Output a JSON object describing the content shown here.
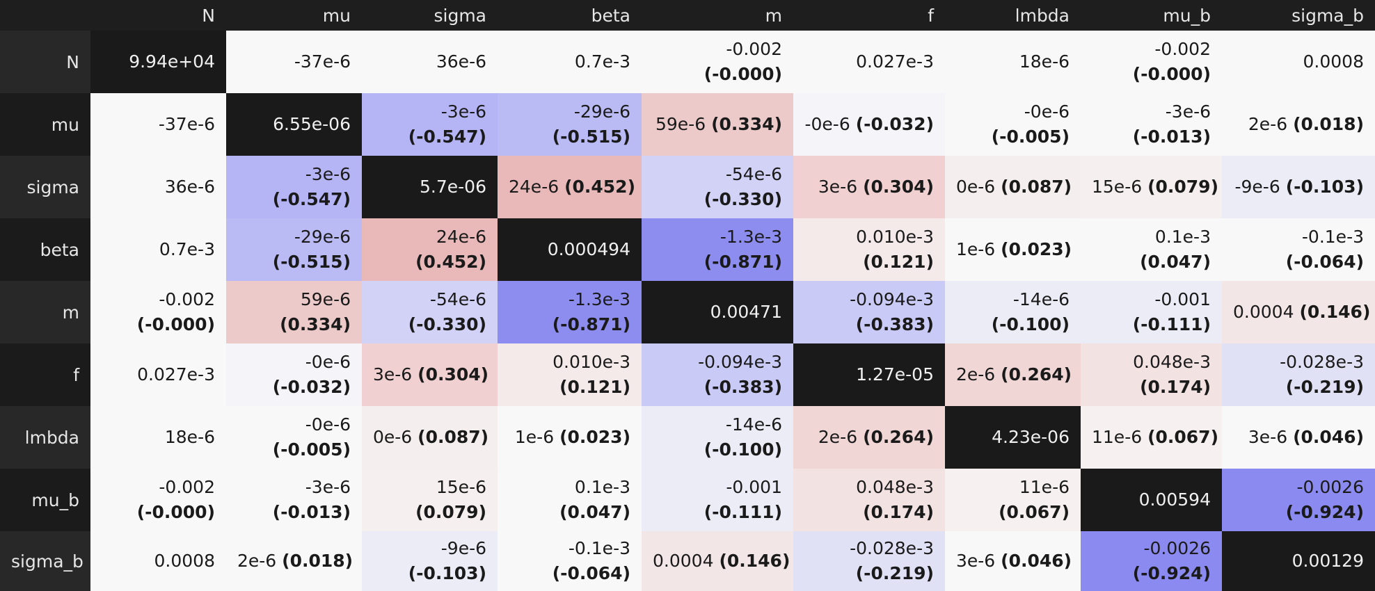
{
  "columns": [
    "N",
    "mu",
    "sigma",
    "beta",
    "m",
    "f",
    "lmbda",
    "mu_b",
    "sigma_b"
  ],
  "rows": [
    {
      "name": "N",
      "cells": [
        {
          "v": "9.94e+04",
          "bg": "#1a1a1a",
          "fg": "#f0f0f0"
        },
        {
          "v": "-37e-6",
          "bg": "#f8f8f8"
        },
        {
          "v": "36e-6",
          "bg": "#f8f8f8"
        },
        {
          "v": "0.7e-3",
          "bg": "#f8f8f8"
        },
        {
          "v": "-0.002",
          "c": "(-0.000)",
          "nl": true,
          "bg": "#f8f8f8"
        },
        {
          "v": "0.027e-3",
          "bg": "#f8f8f8"
        },
        {
          "v": "18e-6",
          "bg": "#f8f8f8"
        },
        {
          "v": "-0.002",
          "c": "(-0.000)",
          "nl": true,
          "bg": "#f8f8f8"
        },
        {
          "v": "0.0008",
          "bg": "#f8f8f8"
        }
      ]
    },
    {
      "name": "mu",
      "cells": [
        {
          "v": "-37e-6",
          "bg": "#f8f8f8"
        },
        {
          "v": "6.55e-06",
          "bg": "#1a1a1a",
          "fg": "#f0f0f0"
        },
        {
          "v": "-3e-6",
          "c": "(-0.547)",
          "nl": true,
          "bg": "#b5b5f6"
        },
        {
          "v": "-29e-6",
          "c": "(-0.515)",
          "nl": true,
          "bg": "#babaf5"
        },
        {
          "v": "59e-6",
          "c": "(0.334)",
          "nl": false,
          "bg": "#edcaca"
        },
        {
          "v": "-0e-6",
          "c": "(-0.032)",
          "nl": false,
          "bg": "#f5f5f9"
        },
        {
          "v": "-0e-6",
          "c": "(-0.005)",
          "nl": true,
          "bg": "#f8f8f8"
        },
        {
          "v": "-3e-6",
          "c": "(-0.013)",
          "nl": true,
          "bg": "#f8f8f8"
        },
        {
          "v": "2e-6",
          "c": "(0.018)",
          "nl": false,
          "bg": "#f8f8f8"
        }
      ]
    },
    {
      "name": "sigma",
      "cells": [
        {
          "v": "36e-6",
          "bg": "#f8f8f8"
        },
        {
          "v": "-3e-6",
          "c": "(-0.547)",
          "nl": true,
          "bg": "#b5b5f6"
        },
        {
          "v": "5.7e-06",
          "bg": "#1a1a1a",
          "fg": "#f0f0f0"
        },
        {
          "v": "24e-6",
          "c": "(0.452)",
          "nl": false,
          "bg": "#e9b9b9"
        },
        {
          "v": "-54e-6",
          "c": "(-0.330)",
          "nl": true,
          "bg": "#d2d2f6"
        },
        {
          "v": "3e-6",
          "c": "(0.304)",
          "nl": false,
          "bg": "#f0d0d0"
        },
        {
          "v": "0e-6",
          "c": "(0.087)",
          "nl": false,
          "bg": "#f5eeee"
        },
        {
          "v": "15e-6",
          "c": "(0.079)",
          "nl": false,
          "bg": "#f5efef"
        },
        {
          "v": "-9e-6",
          "c": "(-0.103)",
          "nl": false,
          "bg": "#ececf7"
        }
      ]
    },
    {
      "name": "beta",
      "cells": [
        {
          "v": "0.7e-3",
          "bg": "#f8f8f8"
        },
        {
          "v": "-29e-6",
          "c": "(-0.515)",
          "nl": true,
          "bg": "#babaf5"
        },
        {
          "v": "24e-6",
          "c": "(0.452)",
          "nl": true,
          "bg": "#e9b9b9"
        },
        {
          "v": "0.000494",
          "bg": "#1a1a1a",
          "fg": "#f0f0f0"
        },
        {
          "v": "-1.3e-3",
          "c": "(-0.871)",
          "nl": true,
          "bg": "#8d8df0"
        },
        {
          "v": "0.010e-3",
          "c": "(0.121)",
          "nl": true,
          "bg": "#f4eaea"
        },
        {
          "v": "1e-6",
          "c": "(0.023)",
          "nl": false,
          "bg": "#f8f8f8"
        },
        {
          "v": "0.1e-3",
          "c": "(0.047)",
          "nl": true,
          "bg": "#f8f8f8"
        },
        {
          "v": "-0.1e-3",
          "c": "(-0.064)",
          "nl": true,
          "bg": "#f8f8f8"
        }
      ]
    },
    {
      "name": "m",
      "cells": [
        {
          "v": "-0.002",
          "c": "(-0.000)",
          "nl": true,
          "bg": "#f8f8f8"
        },
        {
          "v": "59e-6",
          "c": "(0.334)",
          "nl": true,
          "bg": "#edcaca"
        },
        {
          "v": "-54e-6",
          "c": "(-0.330)",
          "nl": true,
          "bg": "#d2d2f6"
        },
        {
          "v": "-1.3e-3",
          "c": "(-0.871)",
          "nl": true,
          "bg": "#8d8df0"
        },
        {
          "v": "0.00471",
          "bg": "#1a1a1a",
          "fg": "#f0f0f0"
        },
        {
          "v": "-0.094e-3",
          "c": "(-0.383)",
          "nl": true,
          "bg": "#cacaf6"
        },
        {
          "v": "-14e-6",
          "c": "(-0.100)",
          "nl": true,
          "bg": "#ececf7"
        },
        {
          "v": "-0.001",
          "c": "(-0.111)",
          "nl": true,
          "bg": "#ececf7"
        },
        {
          "v": "0.0004",
          "c": "(0.146)",
          "nl": false,
          "bg": "#f3e6e6"
        }
      ]
    },
    {
      "name": "f",
      "cells": [
        {
          "v": "0.027e-3",
          "bg": "#f8f8f8"
        },
        {
          "v": "-0e-6",
          "c": "(-0.032)",
          "nl": true,
          "bg": "#f5f5f9"
        },
        {
          "v": "3e-6",
          "c": "(0.304)",
          "nl": false,
          "bg": "#f0d0d0"
        },
        {
          "v": "0.010e-3",
          "c": "(0.121)",
          "nl": true,
          "bg": "#f4eaea"
        },
        {
          "v": "-0.094e-3",
          "c": "(-0.383)",
          "nl": true,
          "bg": "#cacaf6"
        },
        {
          "v": "1.27e-05",
          "bg": "#1a1a1a",
          "fg": "#f0f0f0"
        },
        {
          "v": "2e-6",
          "c": "(0.264)",
          "nl": false,
          "bg": "#f1d6d6"
        },
        {
          "v": "0.048e-3",
          "c": "(0.174)",
          "nl": true,
          "bg": "#f2e2e2"
        },
        {
          "v": "-0.028e-3",
          "c": "(-0.219)",
          "nl": true,
          "bg": "#e1e1f6"
        }
      ]
    },
    {
      "name": "lmbda",
      "cells": [
        {
          "v": "18e-6",
          "bg": "#f8f8f8"
        },
        {
          "v": "-0e-6",
          "c": "(-0.005)",
          "nl": true,
          "bg": "#f8f8f8"
        },
        {
          "v": "0e-6",
          "c": "(0.087)",
          "nl": false,
          "bg": "#f5eeee"
        },
        {
          "v": "1e-6",
          "c": "(0.023)",
          "nl": false,
          "bg": "#f8f8f8"
        },
        {
          "v": "-14e-6",
          "c": "(-0.100)",
          "nl": true,
          "bg": "#ececf7"
        },
        {
          "v": "2e-6",
          "c": "(0.264)",
          "nl": false,
          "bg": "#f1d6d6"
        },
        {
          "v": "4.23e-06",
          "bg": "#1a1a1a",
          "fg": "#f0f0f0"
        },
        {
          "v": "11e-6",
          "c": "(0.067)",
          "nl": false,
          "bg": "#f6f0f0"
        },
        {
          "v": "3e-6",
          "c": "(0.046)",
          "nl": false,
          "bg": "#f8f8f8"
        }
      ]
    },
    {
      "name": "mu_b",
      "cells": [
        {
          "v": "-0.002",
          "c": "(-0.000)",
          "nl": true,
          "bg": "#f8f8f8"
        },
        {
          "v": "-3e-6",
          "c": "(-0.013)",
          "nl": true,
          "bg": "#f8f8f8"
        },
        {
          "v": "15e-6",
          "c": "(0.079)",
          "nl": true,
          "bg": "#f5efef"
        },
        {
          "v": "0.1e-3",
          "c": "(0.047)",
          "nl": true,
          "bg": "#f8f8f8"
        },
        {
          "v": "-0.001",
          "c": "(-0.111)",
          "nl": true,
          "bg": "#ececf7"
        },
        {
          "v": "0.048e-3",
          "c": "(0.174)",
          "nl": true,
          "bg": "#f2e2e2"
        },
        {
          "v": "11e-6",
          "c": "(0.067)",
          "nl": true,
          "bg": "#f6f0f0"
        },
        {
          "v": "0.00594",
          "bg": "#1a1a1a",
          "fg": "#f0f0f0"
        },
        {
          "v": "-0.0026",
          "c": "(-0.924)",
          "nl": true,
          "bg": "#8a8af0"
        }
      ]
    },
    {
      "name": "sigma_b",
      "cells": [
        {
          "v": "0.0008",
          "bg": "#f8f8f8"
        },
        {
          "v": "2e-6",
          "c": "(0.018)",
          "nl": false,
          "bg": "#f8f8f8"
        },
        {
          "v": "-9e-6",
          "c": "(-0.103)",
          "nl": true,
          "bg": "#ececf7"
        },
        {
          "v": "-0.1e-3",
          "c": "(-0.064)",
          "nl": true,
          "bg": "#f8f8f8"
        },
        {
          "v": "0.0004",
          "c": "(0.146)",
          "nl": false,
          "bg": "#f3e6e6"
        },
        {
          "v": "-0.028e-3",
          "c": "(-0.219)",
          "nl": true,
          "bg": "#e1e1f6"
        },
        {
          "v": "3e-6",
          "c": "(0.046)",
          "nl": false,
          "bg": "#f8f8f8"
        },
        {
          "v": "-0.0026",
          "c": "(-0.924)",
          "nl": true,
          "bg": "#8a8af0"
        },
        {
          "v": "0.00129",
          "bg": "#1a1a1a",
          "fg": "#f0f0f0"
        }
      ]
    }
  ]
}
